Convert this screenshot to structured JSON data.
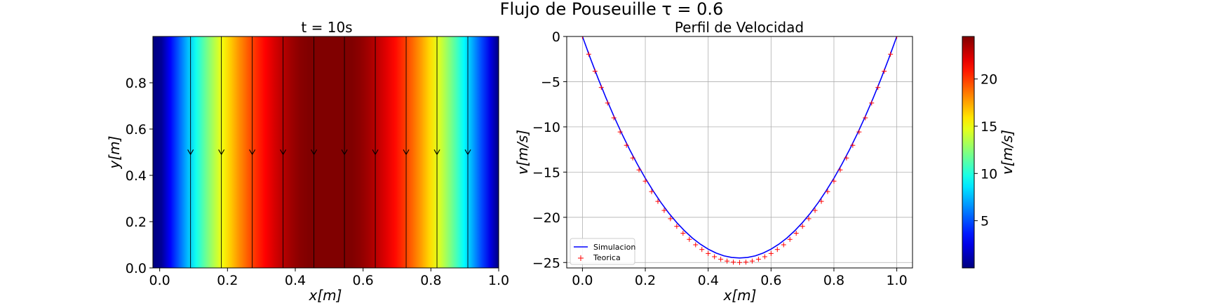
{
  "figure": {
    "suptitle": "Flujo de Pouseuille τ = 0.6"
  },
  "chart_data": [
    {
      "type": "heatmap",
      "title": "t = 10s",
      "xlabel": "x[m]",
      "ylabel": "y[m]",
      "xlim": [
        -0.02,
        1.0
      ],
      "ylim": [
        0.0,
        1.0
      ],
      "xticks": [
        "0.0",
        "0.2",
        "0.4",
        "0.6",
        "0.8",
        "1.0"
      ],
      "yticks": [
        "0.0",
        "0.2",
        "0.4",
        "0.6",
        "0.8"
      ],
      "field": "v(x) = 100·x·(1−x), uniform in y",
      "vmin": 0.0,
      "vmax": 24.5,
      "colormap": "jet",
      "streamlines_x": [
        0.091,
        0.182,
        0.273,
        0.364,
        0.455,
        0.545,
        0.636,
        0.727,
        0.818,
        0.909
      ],
      "arrow_y": 0.49,
      "arrow_direction": "down",
      "colorbar": {
        "label": "v[m/s]",
        "ticks": [
          "5",
          "10",
          "15",
          "20"
        ],
        "tick_values": [
          5,
          10,
          15,
          20
        ]
      }
    },
    {
      "type": "line",
      "title": "Perfil de Velocidad",
      "xlabel": "x[m]",
      "ylabel": "v[m/s]",
      "xlim": [
        -0.05,
        1.05
      ],
      "ylim": [
        -25.6,
        0.0
      ],
      "xticks": [
        "0.0",
        "0.2",
        "0.4",
        "0.6",
        "0.8",
        "1.0"
      ],
      "yticks": [
        "0",
        "−5",
        "−10",
        "−15",
        "−20",
        "−25"
      ],
      "ytick_values": [
        0,
        -5,
        -10,
        -15,
        -20,
        -25
      ],
      "xtick_values": [
        0.0,
        0.2,
        0.4,
        0.6,
        0.8,
        1.0
      ],
      "grid": true,
      "legend_position": "lower-left",
      "series": [
        {
          "name": "Simulacion",
          "style": "line",
          "color": "#0000ff",
          "x": [
            0.0,
            0.025,
            0.05,
            0.075,
            0.1,
            0.125,
            0.15,
            0.175,
            0.2,
            0.225,
            0.25,
            0.275,
            0.3,
            0.325,
            0.35,
            0.375,
            0.4,
            0.425,
            0.45,
            0.475,
            0.5,
            0.525,
            0.55,
            0.575,
            0.6,
            0.625,
            0.65,
            0.675,
            0.7,
            0.725,
            0.75,
            0.775,
            0.8,
            0.825,
            0.85,
            0.875,
            0.9,
            0.925,
            0.95,
            0.975,
            1.0
          ],
          "y": [
            0.0,
            -2.39,
            -4.66,
            -6.8,
            -8.82,
            -10.72,
            -12.5,
            -14.15,
            -15.68,
            -17.08,
            -18.38,
            -19.55,
            -20.58,
            -21.5,
            -22.3,
            -22.97,
            -23.52,
            -23.95,
            -24.26,
            -24.44,
            -24.5,
            -24.44,
            -24.26,
            -23.95,
            -23.52,
            -22.97,
            -22.3,
            -21.5,
            -20.58,
            -19.55,
            -18.38,
            -17.08,
            -15.68,
            -14.15,
            -12.5,
            -10.72,
            -8.82,
            -6.8,
            -4.66,
            -2.39,
            0.0
          ]
        },
        {
          "name": "Teorica",
          "style": "markers",
          "marker": "+",
          "color": "#ff0000",
          "x": [
            0.0,
            0.02,
            0.04,
            0.06,
            0.08,
            0.1,
            0.12,
            0.14,
            0.16,
            0.18,
            0.2,
            0.22,
            0.24,
            0.26,
            0.28,
            0.3,
            0.32,
            0.34,
            0.36,
            0.38,
            0.4,
            0.42,
            0.44,
            0.46,
            0.48,
            0.5,
            0.52,
            0.54,
            0.56,
            0.58,
            0.6,
            0.62,
            0.64,
            0.66,
            0.68,
            0.7,
            0.72,
            0.74,
            0.76,
            0.78,
            0.8,
            0.82,
            0.84,
            0.86,
            0.88,
            0.9,
            0.92,
            0.94,
            0.96,
            0.98,
            1.0
          ],
          "y": [
            0.0,
            -1.96,
            -3.84,
            -5.64,
            -7.36,
            -9.0,
            -10.56,
            -12.04,
            -13.44,
            -14.76,
            -16.0,
            -17.16,
            -18.24,
            -19.24,
            -20.16,
            -21.0,
            -21.76,
            -22.44,
            -23.04,
            -23.56,
            -24.0,
            -24.36,
            -24.64,
            -24.84,
            -24.96,
            -25.0,
            -24.96,
            -24.84,
            -24.64,
            -24.36,
            -24.0,
            -23.56,
            -23.04,
            -22.44,
            -21.76,
            -21.0,
            -20.16,
            -19.24,
            -18.24,
            -17.16,
            -16.0,
            -14.76,
            -13.44,
            -12.04,
            -10.56,
            -9.0,
            -7.36,
            -5.64,
            -3.84,
            -1.96,
            0.0
          ]
        }
      ]
    }
  ]
}
